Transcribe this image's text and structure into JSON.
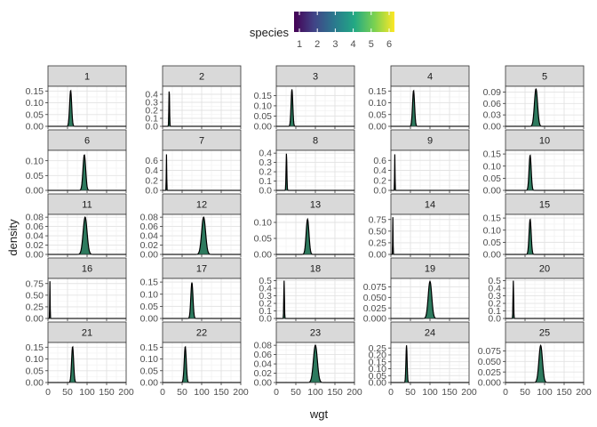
{
  "chart_data": {
    "type": "area",
    "xlabel": "wgt",
    "ylabel": "density",
    "xlim": [
      0,
      200
    ],
    "x_ticks": [
      0,
      50,
      100,
      150,
      200
    ],
    "x_tick_labels": [
      "0",
      "50",
      "100",
      "150",
      "200"
    ],
    "grid": true,
    "legend": {
      "title": "species",
      "position": "top",
      "labels": [
        "1",
        "2",
        "3",
        "4",
        "5",
        "6"
      ],
      "colors": [
        "#440154",
        "#414487",
        "#2a788e",
        "#22a884",
        "#7ad151",
        "#fde725"
      ],
      "range": [
        1,
        6
      ]
    },
    "fill_color": "#2d7a5e",
    "strip_fill": "#d9d9d9",
    "panels": [
      {
        "label": "1",
        "peak": 58,
        "sd": 2.6,
        "peak_density": 0.152,
        "ylim": [
          0,
          0.17
        ],
        "y_ticks": [
          0,
          0.05,
          0.1,
          0.15
        ],
        "y_tick_labels": [
          "0.00",
          "0.05",
          "0.10",
          "0.15"
        ]
      },
      {
        "label": "2",
        "peak": 17,
        "sd": 0.85,
        "peak_density": 0.47,
        "ylim": [
          0,
          0.5
        ],
        "y_ticks": [
          0,
          0.1,
          0.2,
          0.3,
          0.4
        ],
        "y_tick_labels": [
          "0.0",
          "0.1",
          "0.2",
          "0.3",
          "0.4"
        ]
      },
      {
        "label": "3",
        "peak": 40,
        "sd": 2.2,
        "peak_density": 0.18,
        "ylim": [
          0,
          0.195
        ],
        "y_ticks": [
          0,
          0.05,
          0.1,
          0.15
        ],
        "y_tick_labels": [
          "0.00",
          "0.05",
          "0.10",
          "0.15"
        ]
      },
      {
        "label": "4",
        "peak": 58,
        "sd": 2.6,
        "peak_density": 0.152,
        "ylim": [
          0,
          0.17
        ],
        "y_ticks": [
          0,
          0.05,
          0.1,
          0.15
        ],
        "y_tick_labels": [
          "0.00",
          "0.05",
          "0.10",
          "0.15"
        ]
      },
      {
        "label": "5",
        "peak": 78,
        "sd": 4.0,
        "peak_density": 0.098,
        "ylim": [
          0,
          0.105
        ],
        "y_ticks": [
          0,
          0.03,
          0.06,
          0.09
        ],
        "y_tick_labels": [
          "0.00",
          "0.03",
          "0.06",
          "0.09"
        ]
      },
      {
        "label": "6",
        "peak": 93,
        "sd": 3.4,
        "peak_density": 0.12,
        "ylim": [
          0,
          0.135
        ],
        "y_ticks": [
          0,
          0.05,
          0.1
        ],
        "y_tick_labels": [
          "0.00",
          "0.05",
          "0.10"
        ]
      },
      {
        "label": "7",
        "peak": 10,
        "sd": 0.55,
        "peak_density": 0.72,
        "ylim": [
          0,
          0.8
        ],
        "y_ticks": [
          0,
          0.2,
          0.4,
          0.6
        ],
        "y_tick_labels": [
          "0.0",
          "0.2",
          "0.4",
          "0.6"
        ]
      },
      {
        "label": "8",
        "peak": 26,
        "sd": 1.0,
        "peak_density": 0.4,
        "ylim": [
          0,
          0.43
        ],
        "y_ticks": [
          0,
          0.1,
          0.2,
          0.3,
          0.4
        ],
        "y_tick_labels": [
          "0.0",
          "0.1",
          "0.2",
          "0.3",
          "0.4"
        ]
      },
      {
        "label": "9",
        "peak": 10,
        "sd": 0.55,
        "peak_density": 0.72,
        "ylim": [
          0,
          0.8
        ],
        "y_ticks": [
          0,
          0.2,
          0.4,
          0.6
        ],
        "y_tick_labels": [
          "0.0",
          "0.2",
          "0.4",
          "0.6"
        ]
      },
      {
        "label": "10",
        "peak": 63,
        "sd": 2.7,
        "peak_density": 0.145,
        "ylim": [
          0,
          0.165
        ],
        "y_ticks": [
          0,
          0.05,
          0.1,
          0.15
        ],
        "y_tick_labels": [
          "0.00",
          "0.05",
          "0.10",
          "0.15"
        ]
      },
      {
        "label": "11",
        "peak": 95,
        "sd": 5.0,
        "peak_density": 0.08,
        "ylim": [
          0,
          0.086
        ],
        "y_ticks": [
          0,
          0.02,
          0.04,
          0.06,
          0.08
        ],
        "y_tick_labels": [
          "0.00",
          "0.02",
          "0.04",
          "0.06",
          "0.08"
        ]
      },
      {
        "label": "12",
        "peak": 105,
        "sd": 5.0,
        "peak_density": 0.08,
        "ylim": [
          0,
          0.086
        ],
        "y_ticks": [
          0,
          0.02,
          0.04,
          0.06,
          0.08
        ],
        "y_tick_labels": [
          "0.00",
          "0.02",
          "0.04",
          "0.06",
          "0.08"
        ]
      },
      {
        "label": "13",
        "peak": 80,
        "sd": 3.6,
        "peak_density": 0.11,
        "ylim": [
          0,
          0.125
        ],
        "y_ticks": [
          0,
          0.05,
          0.1
        ],
        "y_tick_labels": [
          "0.00",
          "0.05",
          "0.10"
        ]
      },
      {
        "label": "14",
        "peak": 5,
        "sd": 0.5,
        "peak_density": 0.8,
        "ylim": [
          0,
          0.86
        ],
        "y_ticks": [
          0,
          0.25,
          0.5,
          0.75
        ],
        "y_tick_labels": [
          "0.00",
          "0.25",
          "0.50",
          "0.75"
        ]
      },
      {
        "label": "15",
        "peak": 63,
        "sd": 2.7,
        "peak_density": 0.145,
        "ylim": [
          0,
          0.165
        ],
        "y_ticks": [
          0,
          0.05,
          0.1,
          0.15
        ],
        "y_tick_labels": [
          "0.00",
          "0.05",
          "0.10",
          "0.15"
        ]
      },
      {
        "label": "16",
        "peak": 5,
        "sd": 0.5,
        "peak_density": 0.8,
        "ylim": [
          0,
          0.86
        ],
        "y_ticks": [
          0,
          0.25,
          0.5,
          0.75
        ],
        "y_tick_labels": [
          "0.00",
          "0.25",
          "0.50",
          "0.75"
        ]
      },
      {
        "label": "17",
        "peak": 75,
        "sd": 2.7,
        "peak_density": 0.148,
        "ylim": [
          0,
          0.165
        ],
        "y_ticks": [
          0,
          0.05,
          0.1,
          0.15
        ],
        "y_tick_labels": [
          "0.00",
          "0.05",
          "0.10",
          "0.15"
        ]
      },
      {
        "label": "18",
        "peak": 20,
        "sd": 0.8,
        "peak_density": 0.5,
        "ylim": [
          0,
          0.53
        ],
        "y_ticks": [
          0,
          0.1,
          0.2,
          0.3,
          0.4,
          0.5
        ],
        "y_tick_labels": [
          "0.0",
          "0.1",
          "0.2",
          "0.3",
          "0.4",
          "0.5"
        ]
      },
      {
        "label": "19",
        "peak": 100,
        "sd": 4.5,
        "peak_density": 0.088,
        "ylim": [
          0,
          0.095
        ],
        "y_ticks": [
          0,
          0.025,
          0.05,
          0.075
        ],
        "y_tick_labels": [
          "0.000",
          "0.025",
          "0.050",
          "0.075"
        ]
      },
      {
        "label": "20",
        "peak": 20,
        "sd": 0.8,
        "peak_density": 0.5,
        "ylim": [
          0,
          0.53
        ],
        "y_ticks": [
          0,
          0.1,
          0.2,
          0.3,
          0.4,
          0.5
        ],
        "y_tick_labels": [
          "0.0",
          "0.1",
          "0.2",
          "0.3",
          "0.4",
          "0.5"
        ]
      },
      {
        "label": "21",
        "peak": 63,
        "sd": 2.6,
        "peak_density": 0.152,
        "ylim": [
          0,
          0.17
        ],
        "y_ticks": [
          0,
          0.05,
          0.1,
          0.15
        ],
        "y_tick_labels": [
          "0.00",
          "0.05",
          "0.10",
          "0.15"
        ]
      },
      {
        "label": "22",
        "peak": 58,
        "sd": 2.6,
        "peak_density": 0.152,
        "ylim": [
          0,
          0.17
        ],
        "y_ticks": [
          0,
          0.05,
          0.1,
          0.15
        ],
        "y_tick_labels": [
          "0.00",
          "0.05",
          "0.10",
          "0.15"
        ]
      },
      {
        "label": "23",
        "peak": 100,
        "sd": 5.0,
        "peak_density": 0.08,
        "ylim": [
          0,
          0.086
        ],
        "y_ticks": [
          0,
          0.02,
          0.04,
          0.06,
          0.08
        ],
        "y_tick_labels": [
          "0.00",
          "0.02",
          "0.04",
          "0.06",
          "0.08"
        ]
      },
      {
        "label": "24",
        "peak": 40,
        "sd": 1.5,
        "peak_density": 0.27,
        "ylim": [
          0,
          0.29
        ],
        "y_ticks": [
          0,
          0.05,
          0.1,
          0.15,
          0.2,
          0.25
        ],
        "y_tick_labels": [
          "0.00",
          "0.05",
          "0.10",
          "0.15",
          "0.20",
          "0.25"
        ]
      },
      {
        "label": "25",
        "peak": 90,
        "sd": 4.5,
        "peak_density": 0.088,
        "ylim": [
          0,
          0.095
        ],
        "y_ticks": [
          0,
          0.025,
          0.05,
          0.075
        ],
        "y_tick_labels": [
          "0.000",
          "0.025",
          "0.050",
          "0.075"
        ]
      }
    ]
  }
}
